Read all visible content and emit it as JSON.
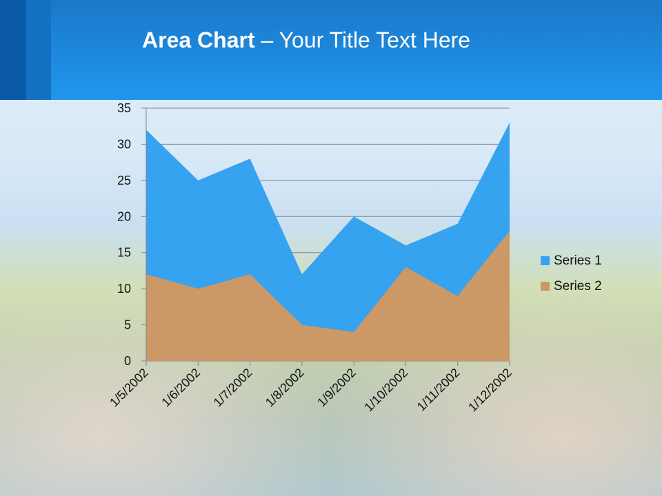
{
  "title": {
    "bold": "Area Chart",
    "rest": " – Your Title Text Here"
  },
  "chart_data": {
    "type": "area",
    "categories": [
      "1/5/2002",
      "1/6/2002",
      "1/7/2002",
      "1/8/2002",
      "1/9/2002",
      "1/10/2002",
      "1/11/2002",
      "1/12/2002"
    ],
    "series": [
      {
        "name": "Series 1",
        "values": [
          32,
          25,
          28,
          12,
          20,
          16,
          19,
          33
        ],
        "color": "#36a3f1"
      },
      {
        "name": "Series 2",
        "values": [
          12,
          10,
          12,
          5,
          4,
          13,
          9,
          18
        ],
        "color": "#cc9866"
      }
    ],
    "ylim": [
      0,
      35
    ],
    "yticks": [
      0,
      5,
      10,
      15,
      20,
      25,
      30,
      35
    ],
    "grid": true,
    "legend": "right"
  }
}
